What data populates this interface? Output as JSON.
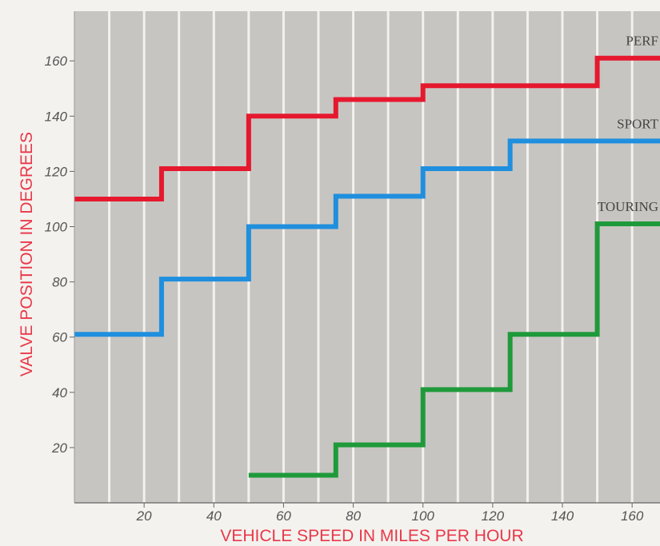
{
  "chart_data": {
    "type": "line",
    "step": true,
    "title": "",
    "xlabel": "VEHICLE SPEED IN MILES PER HOUR",
    "ylabel": "VALVE POSITION IN DEGREES",
    "xlim": [
      0,
      168
    ],
    "ylim": [
      0,
      178
    ],
    "xticks": [
      20,
      40,
      60,
      80,
      100,
      120,
      140,
      160
    ],
    "yticks": [
      20,
      40,
      60,
      80,
      100,
      120,
      140,
      160
    ],
    "x_tick_labels": [
      "20",
      "40",
      "60",
      "80",
      "100",
      "120",
      "140",
      "160"
    ],
    "y_tick_labels": [
      "20",
      "40",
      "60",
      "80",
      "100",
      "120",
      "140",
      "160"
    ],
    "grid": true,
    "background_color": "#c7c5c1",
    "grid_color": "#f2f1ee",
    "series": [
      {
        "name": "PERF",
        "color": "#e5182e",
        "x": [
          0,
          25,
          50,
          75,
          100,
          150,
          168
        ],
        "y": [
          110,
          121,
          140,
          146,
          151,
          161,
          161
        ]
      },
      {
        "name": "SPORT",
        "color": "#1f8fde",
        "x": [
          0,
          25,
          50,
          75,
          100,
          125,
          168
        ],
        "y": [
          61,
          81,
          100,
          111,
          121,
          131,
          131
        ]
      },
      {
        "name": "TOURING",
        "color": "#1f9a3a",
        "x": [
          50,
          75,
          100,
          125,
          150,
          168
        ],
        "y": [
          10,
          21,
          41,
          61,
          101,
          101
        ]
      }
    ]
  }
}
